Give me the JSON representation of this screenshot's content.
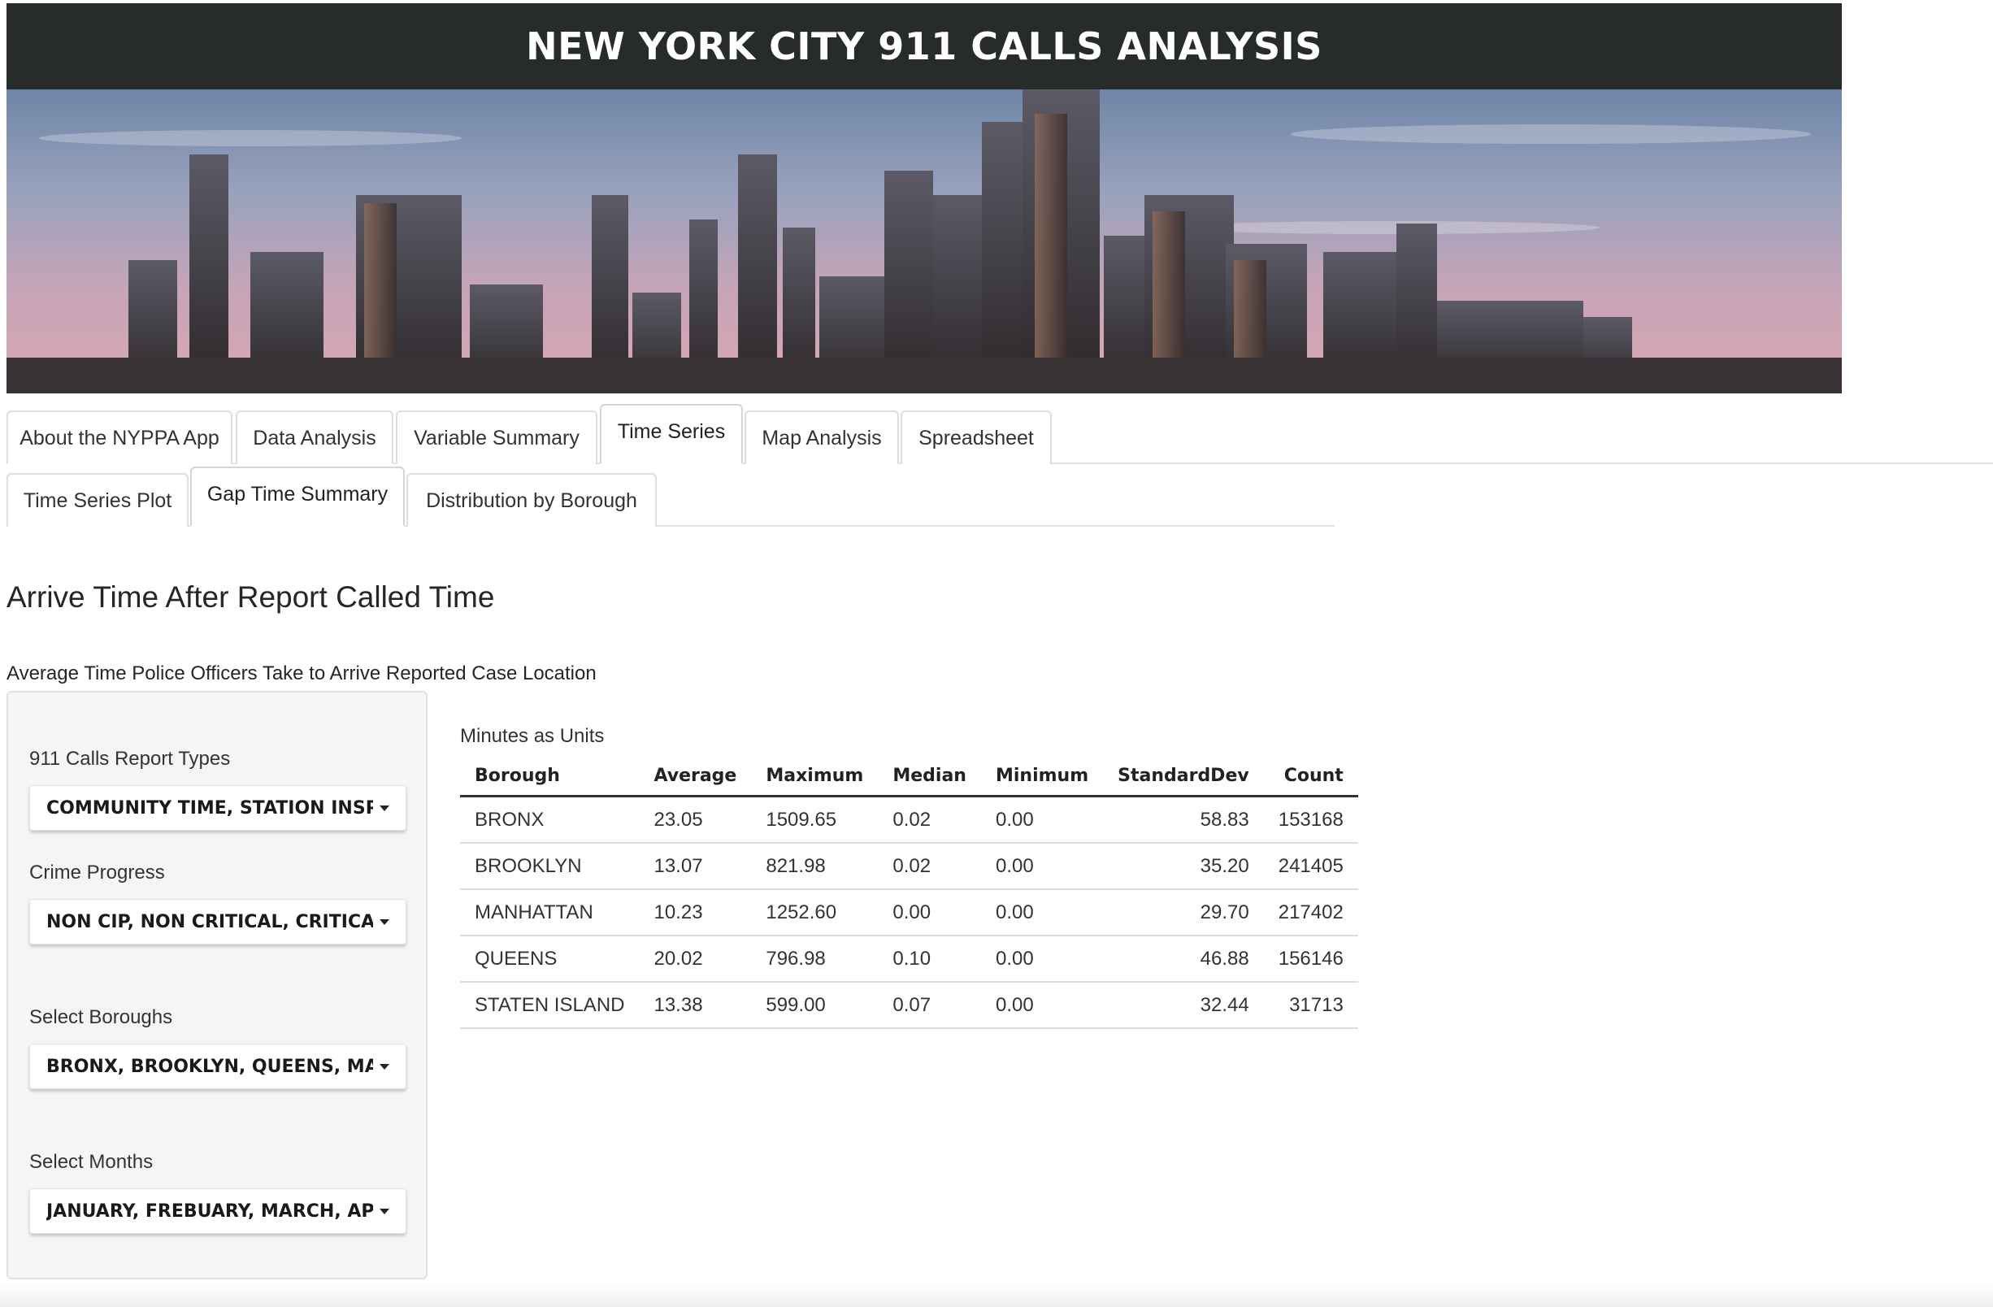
{
  "app": {
    "title": "NEW YORK CITY 911 CALLS ANALYSIS"
  },
  "main_tabs": [
    {
      "label": "About the NYPPA App"
    },
    {
      "label": "Data Analysis"
    },
    {
      "label": "Variable Summary"
    },
    {
      "label": "Time Series"
    },
    {
      "label": "Map Analysis"
    },
    {
      "label": "Spreadsheet"
    }
  ],
  "sub_tabs": [
    {
      "label": "Time Series Plot"
    },
    {
      "label": "Gap Time Summary"
    },
    {
      "label": "Distribution by Borough"
    }
  ],
  "page": {
    "title": "Arrive Time After Report Called Time",
    "subtitle": "Average Time Police Officers Take to Arrive Reported Case Location"
  },
  "filters": {
    "report_types": {
      "label": "911 Calls Report Types",
      "value": "COMMUNITY TIME, STATION INSPECTI"
    },
    "crime_progress": {
      "label": "Crime Progress",
      "value": "NON CIP, NON CRITICAL, CRITICAL, SE"
    },
    "boroughs": {
      "label": "Select Boroughs",
      "value": "BRONX, BROOKLYN, QUEENS, MANHA"
    },
    "months": {
      "label": "Select Months",
      "value": "JANUARY, FREBUARY, MARCH, APRIL"
    }
  },
  "table": {
    "caption": "Minutes as Units",
    "columns": [
      "Borough",
      "Average",
      "Maximum",
      "Median",
      "Minimum",
      "StandardDev",
      "Count"
    ],
    "rows": [
      [
        "BRONX",
        "23.05",
        "1509.65",
        "0.02",
        "0.00",
        "58.83",
        "153168"
      ],
      [
        "BROOKLYN",
        "13.07",
        "821.98",
        "0.02",
        "0.00",
        "35.20",
        "241405"
      ],
      [
        "MANHATTAN",
        "10.23",
        "1252.60",
        "0.00",
        "0.00",
        "29.70",
        "217402"
      ],
      [
        "QUEENS",
        "20.02",
        "796.98",
        "0.10",
        "0.00",
        "46.88",
        "156146"
      ],
      [
        "STATEN ISLAND",
        "13.38",
        "599.00",
        "0.07",
        "0.00",
        "32.44",
        "31713"
      ]
    ]
  },
  "colors": {
    "header_bg": "#272c2b",
    "header_text": "#ffffff",
    "sidebar_bg": "#f5f5f5"
  }
}
